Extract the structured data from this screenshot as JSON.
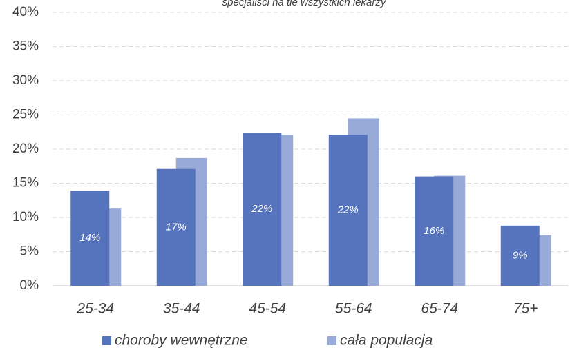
{
  "chart_data": {
    "type": "bar",
    "subtitle": "specjaliści na tle wszystkich lekarzy",
    "categories": [
      "25-34",
      "35-44",
      "45-54",
      "55-64",
      "65-74",
      "75+"
    ],
    "series": [
      {
        "name": "choroby wewnętrzne",
        "color": "#5674bd",
        "values": [
          13.9,
          17.1,
          22.4,
          22.1,
          16.0,
          8.8
        ],
        "value_labels": [
          "14%",
          "17%",
          "22%",
          "22%",
          "16%",
          "9%"
        ]
      },
      {
        "name": "cała populacja",
        "color": "#98aad8",
        "values": [
          11.3,
          18.7,
          22.1,
          24.5,
          16.1,
          7.4
        ]
      }
    ],
    "ylim": [
      0,
      40
    ],
    "yticks": [
      {
        "value": 0,
        "label": "0%"
      },
      {
        "value": 5,
        "label": "5%"
      },
      {
        "value": 10,
        "label": "10%"
      },
      {
        "value": 15,
        "label": "15%"
      },
      {
        "value": 20,
        "label": "20%"
      },
      {
        "value": 25,
        "label": "25%"
      },
      {
        "value": 30,
        "label": "30%"
      },
      {
        "value": 35,
        "label": "35%"
      },
      {
        "value": 40,
        "label": "40%"
      }
    ],
    "grid": true,
    "legend": "bottom"
  }
}
